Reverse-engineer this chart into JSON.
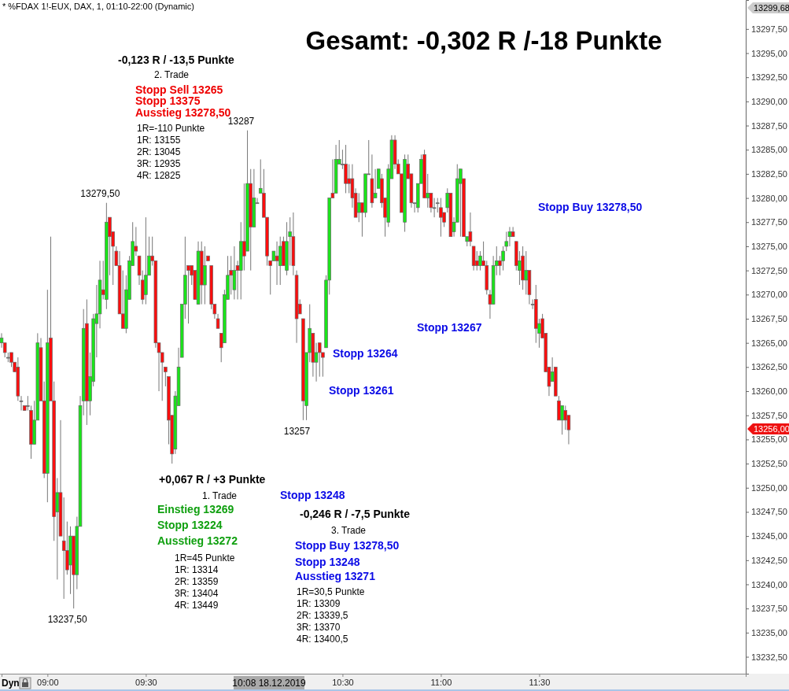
{
  "chart_data": {
    "type": "candlestick",
    "title": "Gesamt: -0,302 R /-18 Punkte",
    "subtitle": "* %FDAX 1!-EUX, DAX, 1, 01:10-22:00 (Dynamic)",
    "x": [
      "2019-12-18T08:46",
      "2019-12-18T08:47",
      "2019-12-18T08:48",
      "2019-12-18T08:49",
      "2019-12-18T08:50",
      "2019-12-18T08:51",
      "2019-12-18T08:52",
      "2019-12-18T08:53",
      "2019-12-18T08:54",
      "2019-12-18T08:55",
      "2019-12-18T08:56",
      "2019-12-18T08:57",
      "2019-12-18T08:58",
      "2019-12-18T08:59",
      "2019-12-18T09:00",
      "2019-12-18T09:01",
      "2019-12-18T09:02",
      "2019-12-18T09:03",
      "2019-12-18T09:04",
      "2019-12-18T09:05",
      "2019-12-18T09:06",
      "2019-12-18T09:07",
      "2019-12-18T09:08",
      "2019-12-18T09:09",
      "2019-12-18T09:10",
      "2019-12-18T09:11",
      "2019-12-18T09:12",
      "2019-12-18T09:13",
      "2019-12-18T09:14",
      "2019-12-18T09:15",
      "2019-12-18T09:16",
      "2019-12-18T09:17",
      "2019-12-18T09:18",
      "2019-12-18T09:19",
      "2019-12-18T09:20",
      "2019-12-18T09:21",
      "2019-12-18T09:22",
      "2019-12-18T09:23",
      "2019-12-18T09:24",
      "2019-12-18T09:25",
      "2019-12-18T09:26",
      "2019-12-18T09:27",
      "2019-12-18T09:28",
      "2019-12-18T09:29",
      "2019-12-18T09:30",
      "2019-12-18T09:31",
      "2019-12-18T09:32",
      "2019-12-18T09:33",
      "2019-12-18T09:34",
      "2019-12-18T09:35",
      "2019-12-18T09:36",
      "2019-12-18T09:37",
      "2019-12-18T09:38",
      "2019-12-18T09:39",
      "2019-12-18T09:40",
      "2019-12-18T09:41",
      "2019-12-18T09:42",
      "2019-12-18T09:43",
      "2019-12-18T09:44",
      "2019-12-18T09:45",
      "2019-12-18T09:46",
      "2019-12-18T09:47",
      "2019-12-18T09:48",
      "2019-12-18T09:49",
      "2019-12-18T09:50",
      "2019-12-18T09:51",
      "2019-12-18T09:52",
      "2019-12-18T09:53",
      "2019-12-18T09:54",
      "2019-12-18T09:55",
      "2019-12-18T09:56",
      "2019-12-18T09:57",
      "2019-12-18T09:58",
      "2019-12-18T09:59",
      "2019-12-18T10:00",
      "2019-12-18T10:01",
      "2019-12-18T10:02",
      "2019-12-18T10:03",
      "2019-12-18T10:04",
      "2019-12-18T10:05",
      "2019-12-18T10:06",
      "2019-12-18T10:07",
      "2019-12-18T10:08",
      "2019-12-18T10:09",
      "2019-12-18T10:10",
      "2019-12-18T10:11",
      "2019-12-18T10:12",
      "2019-12-18T10:13",
      "2019-12-18T10:14",
      "2019-12-18T10:15",
      "2019-12-18T10:16",
      "2019-12-18T10:17",
      "2019-12-18T10:18",
      "2019-12-18T10:19",
      "2019-12-18T10:20",
      "2019-12-18T10:21",
      "2019-12-18T10:22",
      "2019-12-18T10:23",
      "2019-12-18T10:24",
      "2019-12-18T10:25",
      "2019-12-18T10:26",
      "2019-12-18T10:27",
      "2019-12-18T10:28",
      "2019-12-18T10:29",
      "2019-12-18T10:30",
      "2019-12-18T10:31",
      "2019-12-18T10:32",
      "2019-12-18T10:33",
      "2019-12-18T10:34",
      "2019-12-18T10:35",
      "2019-12-18T10:36",
      "2019-12-18T10:37",
      "2019-12-18T10:38",
      "2019-12-18T10:39",
      "2019-12-18T10:40",
      "2019-12-18T10:41",
      "2019-12-18T10:42",
      "2019-12-18T10:43",
      "2019-12-18T10:44",
      "2019-12-18T10:45",
      "2019-12-18T10:46",
      "2019-12-18T10:47",
      "2019-12-18T10:48",
      "2019-12-18T10:49",
      "2019-12-18T10:50",
      "2019-12-18T10:51",
      "2019-12-18T10:52",
      "2019-12-18T10:53",
      "2019-12-18T10:54",
      "2019-12-18T10:55",
      "2019-12-18T10:56",
      "2019-12-18T10:57",
      "2019-12-18T10:58",
      "2019-12-18T10:59",
      "2019-12-18T11:00",
      "2019-12-18T11:01",
      "2019-12-18T11:02",
      "2019-12-18T11:03",
      "2019-12-18T11:04",
      "2019-12-18T11:05",
      "2019-12-18T11:06",
      "2019-12-18T11:07",
      "2019-12-18T11:08",
      "2019-12-18T11:09",
      "2019-12-18T11:10",
      "2019-12-18T11:11",
      "2019-12-18T11:12",
      "2019-12-18T11:13",
      "2019-12-18T11:14",
      "2019-12-18T11:15",
      "2019-12-18T11:16",
      "2019-12-18T11:17",
      "2019-12-18T11:18",
      "2019-12-18T11:19",
      "2019-12-18T11:20",
      "2019-12-18T11:21",
      "2019-12-18T11:22",
      "2019-12-18T11:23",
      "2019-12-18T11:24",
      "2019-12-18T11:25",
      "2019-12-18T11:26",
      "2019-12-18T11:27",
      "2019-12-18T11:28",
      "2019-12-18T11:29",
      "2019-12-18T11:30",
      "2019-12-18T11:31",
      "2019-12-18T11:32",
      "2019-12-18T11:33",
      "2019-12-18T11:34",
      "2019-12-18T11:35",
      "2019-12-18T11:36",
      "2019-12-18T11:37",
      "2019-12-18T11:38",
      "2019-12-18T11:39"
    ],
    "xlim": [
      "2019-12-18T08:46",
      "2019-12-18T12:33"
    ],
    "xticks": [
      {
        "value": "2019-12-18T09:00",
        "label": "09:00"
      },
      {
        "value": "2019-12-18T09:30",
        "label": "09:30"
      },
      {
        "value": "2019-12-18T10:30",
        "label": "10:30"
      },
      {
        "value": "2019-12-18T11:00",
        "label": "11:00"
      },
      {
        "value": "2019-12-18T11:30",
        "label": "11:30"
      }
    ],
    "ylim": [
      13230.75,
      13300.5
    ],
    "yticks": [
      {
        "value": 13232.5,
        "label": "13232,50"
      },
      {
        "value": 13235,
        "label": "13235,00"
      },
      {
        "value": 13237.5,
        "label": "13237,50"
      },
      {
        "value": 13240,
        "label": "13240,00"
      },
      {
        "value": 13242.5,
        "label": "13242,50"
      },
      {
        "value": 13245,
        "label": "13245,00"
      },
      {
        "value": 13247.5,
        "label": "13247,50"
      },
      {
        "value": 13250,
        "label": "13250,00"
      },
      {
        "value": 13252.5,
        "label": "13252,50"
      },
      {
        "value": 13255,
        "label": "13255,00"
      },
      {
        "value": 13257.5,
        "label": "13257,50"
      },
      {
        "value": 13260,
        "label": "13260,00"
      },
      {
        "value": 13262.5,
        "label": "13262,50"
      },
      {
        "value": 13265,
        "label": "13265,00"
      },
      {
        "value": 13267.5,
        "label": "13267,50"
      },
      {
        "value": 13270,
        "label": "13270,00"
      },
      {
        "value": 13272.5,
        "label": "13272,50"
      },
      {
        "value": 13275,
        "label": "13275,00"
      },
      {
        "value": 13277.5,
        "label": "13277,50"
      },
      {
        "value": 13280,
        "label": "13280,00"
      },
      {
        "value": 13282.5,
        "label": "13282,50"
      },
      {
        "value": 13285,
        "label": "13285,00"
      },
      {
        "value": 13287.5,
        "label": "13287,50"
      },
      {
        "value": 13290,
        "label": "13290,00"
      },
      {
        "value": 13292.5,
        "label": "13292,50"
      },
      {
        "value": 13295,
        "label": "13295,00"
      },
      {
        "value": 13297.5,
        "label": "13297,50"
      }
    ],
    "grid": false,
    "ohlc": [
      [
        13265,
        13266,
        13264.5,
        13265.5
      ],
      [
        13265,
        13265,
        13263.5,
        13264
      ],
      [
        13263.5,
        13264,
        13263,
        13263.5
      ],
      [
        13264,
        13264,
        13262.5,
        13263
      ],
      [
        13263,
        13263,
        13262,
        13262
      ],
      [
        13262.5,
        13263.5,
        13259,
        13259.5
      ],
      [
        13259,
        13259.5,
        13258,
        13259
      ],
      [
        13258.5,
        13258.5,
        13258,
        13258
      ],
      [
        13258.5,
        13259.5,
        13258,
        13258.5
      ],
      [
        13258,
        13258.5,
        13253,
        13254.5
      ],
      [
        13254.5,
        13259,
        13254.5,
        13257
      ],
      [
        13257,
        13266,
        13257,
        13265
      ],
      [
        13264.5,
        13265.5,
        13259,
        13259
      ],
      [
        13259,
        13261,
        13251,
        13251.5
      ],
      [
        13251.5,
        13270.5,
        13248.5,
        13265
      ],
      [
        13265.5,
        13276,
        13259,
        13259
      ],
      [
        13259,
        13261,
        13244.5,
        13247
      ],
      [
        13247.5,
        13251,
        13240.5,
        13249.5
      ],
      [
        13249.5,
        13257,
        13245,
        13245
      ],
      [
        13244.5,
        13249,
        13238.5,
        13243.5
      ],
      [
        13243.5,
        13246.5,
        13241,
        13241.5
      ],
      [
        13242,
        13246,
        13239,
        13245
      ],
      [
        13245,
        13245,
        13237.5,
        13241
      ],
      [
        13241,
        13247,
        13239.5,
        13246
      ],
      [
        13246,
        13259.5,
        13246,
        13258.5
      ],
      [
        13259,
        13268.5,
        13257.5,
        13266.5
      ],
      [
        13267,
        13269.5,
        13256.5,
        13259
      ],
      [
        13259,
        13264,
        13257.5,
        13261.5
      ],
      [
        13261,
        13268,
        13260.5,
        13267.5
      ],
      [
        13267,
        13271,
        13263.5,
        13268
      ],
      [
        13268,
        13273.5,
        13266.5,
        13271.5
      ],
      [
        13270.5,
        13273.5,
        13269.5,
        13270
      ],
      [
        13269.5,
        13279.5,
        13268.5,
        13277.5
      ],
      [
        13278,
        13278,
        13272,
        13276
      ],
      [
        13276.5,
        13276.5,
        13271,
        13275
      ],
      [
        13274.5,
        13275,
        13273,
        13273
      ],
      [
        13273,
        13274.5,
        13268,
        13268
      ],
      [
        13268,
        13272.5,
        13266.5,
        13266.5
      ],
      [
        13266.5,
        13272,
        13266,
        13270.5
      ],
      [
        13269.5,
        13274,
        13269.5,
        13273.5
      ],
      [
        13273,
        13277.5,
        13273,
        13275.5
      ],
      [
        13275,
        13277,
        13274,
        13274.5
      ],
      [
        13274,
        13274,
        13271,
        13272
      ],
      [
        13271.5,
        13272.5,
        13269,
        13269.5
      ],
      [
        13270,
        13278,
        13269,
        13272
      ],
      [
        13272,
        13276,
        13272,
        13274
      ],
      [
        13274,
        13276,
        13273,
        13273.5
      ],
      [
        13273.5,
        13273.5,
        13264.5,
        13265
      ],
      [
        13265,
        13265,
        13260,
        13264
      ],
      [
        13264,
        13264,
        13259,
        13263
      ],
      [
        13262.5,
        13262.5,
        13260.5,
        13262
      ],
      [
        13261.5,
        13261.5,
        13254.5,
        13257
      ],
      [
        13257.5,
        13257.5,
        13252.5,
        13253.5
      ],
      [
        13254,
        13260,
        13253.5,
        13259.5
      ],
      [
        13258.5,
        13264.5,
        13258.5,
        13262.5
      ],
      [
        13263.5,
        13269,
        13263.5,
        13269
      ],
      [
        13269,
        13276,
        13267.5,
        13272
      ],
      [
        13273,
        13273,
        13267,
        13272.5
      ],
      [
        13273,
        13273,
        13271,
        13272
      ],
      [
        13272.5,
        13272.5,
        13269.5,
        13269.5
      ],
      [
        13269,
        13275.5,
        13269,
        13274.5
      ],
      [
        13274.5,
        13275.5,
        13269,
        13271
      ],
      [
        13271,
        13275,
        13269,
        13273
      ],
      [
        13274,
        13274,
        13273.5,
        13273.5
      ],
      [
        13273,
        13273,
        13268.5,
        13269
      ],
      [
        13269,
        13269,
        13267.5,
        13268
      ],
      [
        13267.5,
        13268,
        13266.5,
        13266.5
      ],
      [
        13266,
        13266,
        13263,
        13264.5
      ],
      [
        13265,
        13270.5,
        13265,
        13270
      ],
      [
        13269.5,
        13274,
        13269.5,
        13272
      ],
      [
        13272.5,
        13274,
        13270,
        13272
      ],
      [
        13270.5,
        13275,
        13269.5,
        13272.5
      ],
      [
        13273,
        13273.5,
        13269.5,
        13272.5
      ],
      [
        13272.5,
        13277.5,
        13269.5,
        13275.5
      ],
      [
        13275.5,
        13281.5,
        13272.5,
        13274
      ],
      [
        13274.5,
        13287,
        13274.5,
        13281.5
      ],
      [
        13281.5,
        13283,
        13272.5,
        13277
      ],
      [
        13277,
        13283,
        13277,
        13280
      ],
      [
        13279.5,
        13280,
        13279.5,
        13279.5
      ],
      [
        13280.5,
        13284,
        13280.5,
        13281
      ],
      [
        13280.5,
        13283,
        13278,
        13278
      ],
      [
        13278,
        13278,
        13273,
        13274
      ],
      [
        13273.5,
        13273.5,
        13270,
        13273
      ],
      [
        13273.5,
        13274.5,
        13273.5,
        13274.5
      ],
      [
        13274,
        13275.5,
        13271,
        13273.5
      ],
      [
        13273,
        13276,
        13271,
        13275
      ],
      [
        13275.5,
        13276,
        13273,
        13273
      ],
      [
        13272.5,
        13277.5,
        13272,
        13275.5
      ],
      [
        13276,
        13278,
        13273,
        13276.5
      ],
      [
        13276,
        13278.5,
        13272,
        13273
      ],
      [
        13272,
        13272.5,
        13265,
        13267.5
      ],
      [
        13269,
        13269.5,
        13268,
        13268
      ],
      [
        13267.5,
        13267.5,
        13257,
        13259
      ],
      [
        13258.5,
        13264,
        13257,
        13264
      ],
      [
        13264,
        13269,
        13263,
        13266.5
      ],
      [
        13266,
        13266,
        13261.5,
        13263
      ],
      [
        13263,
        13265,
        13261,
        13264
      ],
      [
        13265,
        13265,
        13261.5,
        13264
      ],
      [
        13264,
        13264,
        13261.5,
        13263.5
      ],
      [
        13264.5,
        13272,
        13264.5,
        13271.5
      ],
      [
        13271.5,
        13280,
        13270,
        13280
      ],
      [
        13280.5,
        13284,
        13280,
        13280
      ],
      [
        13280.5,
        13285.5,
        13280.5,
        13284
      ],
      [
        13283.5,
        13286,
        13283.5,
        13284
      ],
      [
        13283.5,
        13285,
        13283,
        13283.5
      ],
      [
        13283.5,
        13285.5,
        13280.5,
        13281.5
      ],
      [
        13282,
        13283.5,
        13280.5,
        13281.5
      ],
      [
        13282,
        13283.5,
        13279,
        13280
      ],
      [
        13280.5,
        13281,
        13278,
        13278
      ],
      [
        13278.5,
        13280.5,
        13277.5,
        13279.5
      ],
      [
        13279.5,
        13279.5,
        13276,
        13278.5
      ],
      [
        13278.5,
        13282.5,
        13278,
        13282.5
      ],
      [
        13282.5,
        13286,
        13282.5,
        13282.5
      ],
      [
        13282,
        13284.5,
        13279,
        13279.5
      ],
      [
        13280,
        13283,
        13280,
        13280.5
      ],
      [
        13281,
        13283,
        13281,
        13283
      ],
      [
        13282,
        13282.5,
        13279,
        13279.5
      ],
      [
        13280,
        13280,
        13276,
        13278
      ],
      [
        13277.5,
        13283.5,
        13277,
        13283
      ],
      [
        13282,
        13286.5,
        13282,
        13286
      ],
      [
        13286,
        13286.5,
        13283,
        13283.5
      ],
      [
        13283.5,
        13284,
        13282.5,
        13282.5
      ],
      [
        13282.5,
        13282.5,
        13278.5,
        13278.5
      ],
      [
        13277.5,
        13284.5,
        13276.5,
        13284
      ],
      [
        13283.5,
        13284.5,
        13282,
        13282
      ],
      [
        13282.5,
        13282.5,
        13279,
        13279.5
      ],
      [
        13279.5,
        13279.5,
        13278.5,
        13279.5
      ],
      [
        13279,
        13281.5,
        13278.5,
        13281.5
      ],
      [
        13281.5,
        13284.5,
        13281.5,
        13284
      ],
      [
        13284.5,
        13285,
        13280,
        13280
      ],
      [
        13280,
        13282.5,
        13279,
        13280.5
      ],
      [
        13280.5,
        13280.5,
        13278.5,
        13279
      ],
      [
        13279,
        13280,
        13278,
        13279
      ],
      [
        13279.5,
        13280,
        13278.5,
        13279.5
      ],
      [
        13279,
        13280,
        13276,
        13278
      ],
      [
        13278.5,
        13278.5,
        13277,
        13277.5
      ],
      [
        13279,
        13281,
        13278.5,
        13280.5
      ],
      [
        13280.5,
        13280.5,
        13276,
        13276
      ],
      [
        13276.5,
        13278,
        13276,
        13277.5
      ],
      [
        13277.5,
        13283.5,
        13277.5,
        13282
      ],
      [
        13281.5,
        13283,
        13276,
        13283
      ],
      [
        13282,
        13282,
        13276,
        13276
      ],
      [
        13275.5,
        13276,
        13275,
        13276
      ],
      [
        13276.5,
        13278.5,
        13275,
        13275.5
      ],
      [
        13275,
        13275,
        13272.5,
        13273
      ],
      [
        13273.5,
        13274.5,
        13272.5,
        13273
      ],
      [
        13273,
        13274.5,
        13272.5,
        13274
      ],
      [
        13273.5,
        13275.5,
        13273,
        13273
      ],
      [
        13273,
        13273.5,
        13270,
        13270.5
      ],
      [
        13270,
        13270.5,
        13267.5,
        13269
      ],
      [
        13269,
        13274,
        13269,
        13273
      ],
      [
        13273,
        13275,
        13272,
        13273.5
      ],
      [
        13273.5,
        13274,
        13272,
        13273
      ],
      [
        13273.5,
        13275,
        13272.5,
        13274.5
      ],
      [
        13275,
        13276.5,
        13274.5,
        13275.5
      ],
      [
        13276,
        13277,
        13275,
        13276.5
      ],
      [
        13276.5,
        13277,
        13276,
        13276
      ],
      [
        13275.5,
        13275.5,
        13272.5,
        13273
      ],
      [
        13272.5,
        13274.5,
        13271,
        13273.5
      ],
      [
        13274,
        13275,
        13270.5,
        13271.5
      ],
      [
        13271.5,
        13274.5,
        13270,
        13272.5
      ],
      [
        13272.5,
        13272.5,
        13269,
        13270
      ],
      [
        13269,
        13269.5,
        13268.5,
        13269
      ],
      [
        13269.5,
        13271,
        13265,
        13266.5
      ],
      [
        13266,
        13267.5,
        13264.5,
        13267
      ],
      [
        13267.5,
        13268,
        13265.5,
        13265.5
      ],
      [
        13266,
        13266,
        13262,
        13262
      ],
      [
        13262.5,
        13262.5,
        13259.5,
        13260.5
      ],
      [
        13261,
        13263.5,
        13261,
        13262
      ],
      [
        13262.5,
        13262.5,
        13259.5,
        13259.5
      ],
      [
        13259,
        13259.5,
        13257,
        13257
      ],
      [
        13257,
        13258.5,
        13255.5,
        13258.5
      ],
      [
        13258,
        13258.5,
        13256,
        13257
      ],
      [
        13257.5,
        13257.5,
        13254.5,
        13256
      ]
    ],
    "annotations": [
      "-0,123 R / -13,5 Punkte",
      "2. Trade",
      "Stopp Sell 13265",
      "Stopp 13375",
      "Ausstieg 13278,50",
      "1R=-110 Punkte",
      "1R: 13155",
      "2R: 13045",
      "3R: 12935",
      "4R: 12825",
      {
        "text": "13279,50",
        "x": "2019-12-18T09:18",
        "y": 13279.5
      },
      {
        "text": "13287",
        "x": "2019-12-18T10:01",
        "y": 13287
      },
      "Stopp Buy 13278,50",
      "Stopp 13267",
      "Stopp 13264",
      "Stopp 13261",
      {
        "text": "13257",
        "x": "2019-12-18T10:18",
        "y": 13257
      },
      "+0,067 R / +3 Punkte",
      "1. Trade",
      "Einstieg 13269",
      "Stopp 13224",
      "Ausstieg 13272",
      "1R=45 Punkte",
      "1R: 13314",
      "2R: 13359",
      "3R: 13404",
      "4R: 13449",
      {
        "text": "13237,50",
        "x": "2019-12-18T09:08",
        "y": 13237.5
      },
      "Stopp 13248",
      "-0,246 R / -7,5 Punkte",
      "3. Trade",
      "Stopp Buy 13278,50",
      "Stopp 13248",
      "Ausstieg 13271",
      "1R=30,5 Punkte",
      "1R: 13309",
      "2R: 13339,5",
      "3R: 13370",
      "4R: 13400,5",
      "10:08 18.12.2019",
      "13299,68",
      "13256,00",
      "Dyn"
    ]
  }
}
